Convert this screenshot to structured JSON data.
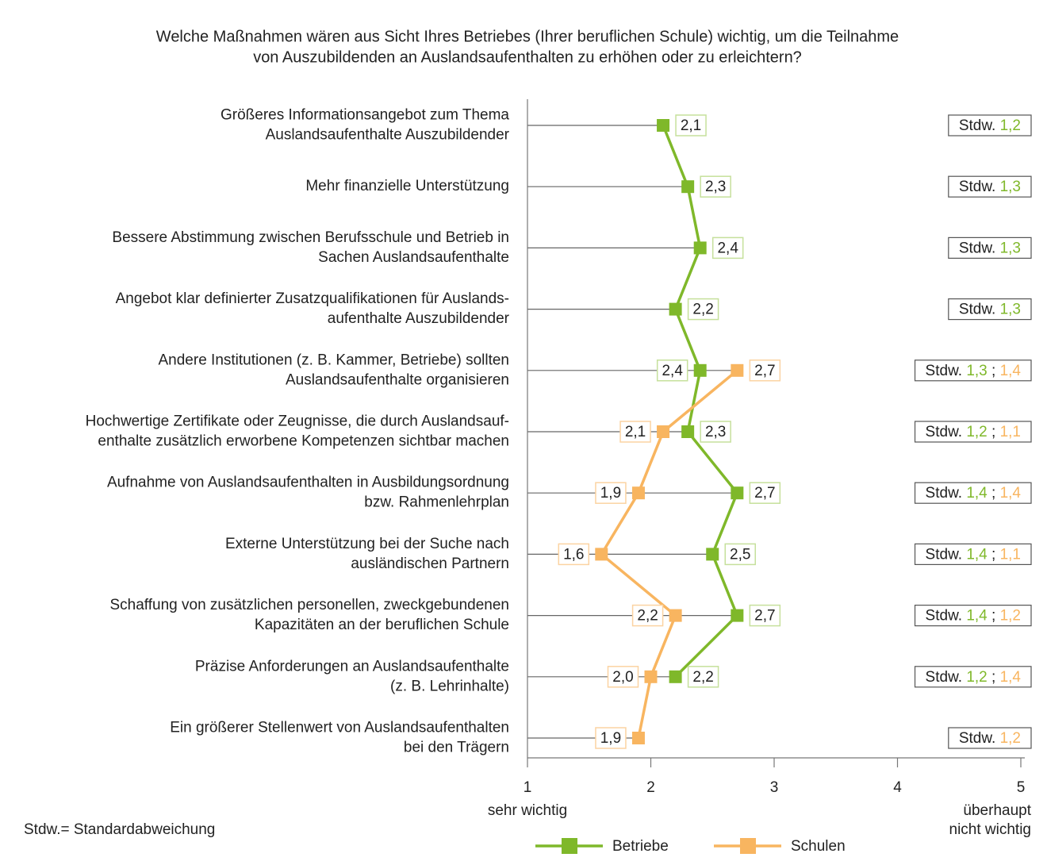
{
  "chart_data": {
    "type": "line",
    "title": [
      "Welche Maßnahmen wären aus Sicht Ihres Betriebes (Ihrer beruflichen Schule) wichtig, um die Teilnahme",
      "von Auszubildenden an Auslandsaufenthalten zu erhöhen oder zu erleichtern?"
    ],
    "categories": [
      [
        "Größeres Informationsangebot zum Thema",
        "Auslandsaufenthalte Auszubildender"
      ],
      [
        "Mehr finanzielle Unterstützung"
      ],
      [
        "Bessere Abstimmung zwischen Berufsschule und Betrieb in",
        "Sachen Auslandsaufenthalte"
      ],
      [
        "Angebot klar definierter Zusatzqualifikationen für Auslands-",
        "aufenthalte Auszubildender"
      ],
      [
        "Andere Institutionen (z. B. Kammer, Betriebe) sollten",
        "Auslandsaufenthalte organisieren"
      ],
      [
        "Hochwertige Zertifikate oder Zeugnisse, die durch Auslandsauf-",
        "enthalte zusätzlich erworbene Kompetenzen sichtbar machen"
      ],
      [
        "Aufnahme von Auslandsaufenthalten in Ausbildungsordnung",
        "bzw. Rahmenlehrplan"
      ],
      [
        "Externe Unterstützung bei der Suche nach",
        "ausländischen Partnern"
      ],
      [
        "Schaffung von zusätzlichen personellen, zweckgebundenen",
        "Kapazitäten an der beruflichen Schule"
      ],
      [
        "Präzise Anforderungen an Auslandsaufenthalte",
        "(z. B. Lehrinhalte)"
      ],
      [
        "Ein größerer Stellenwert von Auslandsaufenthalten",
        "bei den Trägern"
      ]
    ],
    "series": [
      {
        "name": "Betriebe",
        "color": "#7fb82a",
        "label_border": "#c6e09c",
        "values": [
          2.1,
          2.3,
          2.4,
          2.2,
          2.4,
          2.3,
          2.7,
          2.5,
          2.7,
          2.2,
          null
        ],
        "value_labels": [
          "2,1",
          "2,3",
          "2,4",
          "2,2",
          "2,4",
          "2,3",
          "2,7",
          "2,5",
          "2,7",
          "2,2",
          null
        ],
        "sd": [
          1.2,
          1.3,
          1.3,
          1.3,
          1.3,
          1.2,
          1.4,
          1.4,
          1.4,
          1.2,
          null
        ],
        "sd_labels": [
          "1,2",
          "1,3",
          "1,3",
          "1,3",
          "1,3",
          "1,2",
          "1,4",
          "1,4",
          "1,4",
          "1,2",
          null
        ]
      },
      {
        "name": "Schulen",
        "color": "#f8b560",
        "label_border": "#fbd3a2",
        "values": [
          null,
          null,
          null,
          null,
          2.7,
          2.1,
          1.9,
          1.6,
          2.2,
          2.0,
          1.9
        ],
        "value_labels": [
          null,
          null,
          null,
          null,
          "2,7",
          "2,1",
          "1,9",
          "1,6",
          "2,2",
          "2,0",
          "1,9"
        ],
        "sd": [
          null,
          null,
          null,
          null,
          1.4,
          1.1,
          1.4,
          1.1,
          1.2,
          1.4,
          1.2
        ],
        "sd_labels": [
          null,
          null,
          null,
          null,
          "1,4",
          "1,1",
          "1,4",
          "1,1",
          "1,2",
          "1,4",
          "1,2"
        ]
      }
    ],
    "sd_prefix": "Stdw.",
    "sd_separator": ";",
    "xlim": [
      1,
      5
    ],
    "xticks": [
      1,
      2,
      3,
      4,
      5
    ],
    "x_axis_left_label": "sehr wichtig",
    "x_axis_right_label": [
      "überhaupt",
      "nicht wichtig"
    ],
    "footnote": "Stdw.= Standardabweichung"
  }
}
